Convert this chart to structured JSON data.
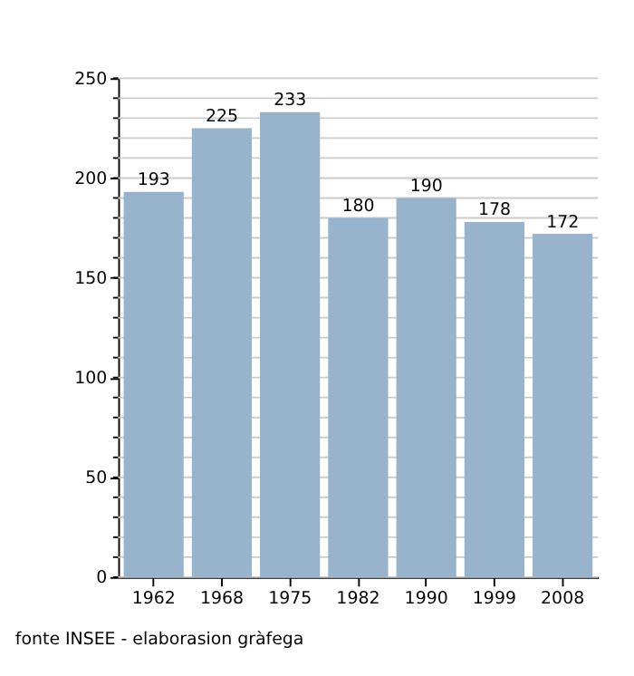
{
  "chart_data": {
    "type": "bar",
    "categories": [
      "1962",
      "1968",
      "1975",
      "1982",
      "1990",
      "1999",
      "2008"
    ],
    "values": [
      193,
      225,
      233,
      180,
      190,
      178,
      172
    ],
    "color": "#98b3cc",
    "ylim": [
      0,
      250
    ],
    "yticks": [
      0,
      {
        "value": 10,
        "label": null
      },
      {
        "value": 20,
        "label": null
      },
      {
        "value": 30,
        "label": null
      },
      {
        "value": 40,
        "label": null
      },
      50,
      {
        "value": 60,
        "label": null
      },
      {
        "value": 70,
        "label": null
      },
      {
        "value": 80,
        "label": null
      },
      {
        "value": 90,
        "label": null
      },
      100,
      {
        "value": 110,
        "label": null
      },
      {
        "value": 120,
        "label": null
      },
      {
        "value": 130,
        "label": null
      },
      {
        "value": 140,
        "label": null
      },
      150,
      {
        "value": 160,
        "label": null
      },
      {
        "value": 170,
        "label": null
      },
      {
        "value": 180,
        "label": null
      },
      {
        "value": 190,
        "label": null
      },
      200,
      {
        "value": 210,
        "label": null
      },
      {
        "value": 220,
        "label": null
      },
      {
        "value": 230,
        "label": null
      },
      {
        "value": 240,
        "label": null
      },
      250
    ],
    "grid": true,
    "data_labels": true,
    "annotations": [
      "fonte INSEE - elaborasion gràfega"
    ]
  }
}
